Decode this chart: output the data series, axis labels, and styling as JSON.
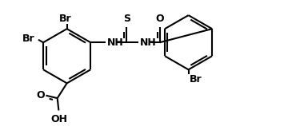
{
  "bg_color": "#ffffff",
  "line_color": "#000000",
  "line_width": 1.5,
  "font_size": 9,
  "bold": false,
  "atoms": {
    "Br1_label": "Br",
    "Br2_label": "Br",
    "Br3_label": "Br",
    "S_label": "S",
    "O1_label": "O",
    "O2_label": "O",
    "OH_label": "OH",
    "NH1_label": "NH",
    "NH2_label": "NH"
  }
}
